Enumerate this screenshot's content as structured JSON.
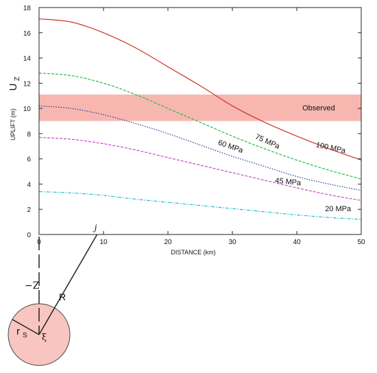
{
  "chart_data": {
    "type": "line",
    "xlabel": "DISTANCE (km)",
    "ylabel": "UPLIFT (m)",
    "ylabel_symbol": "U",
    "ylabel_subscript": "Z",
    "xlim": [
      0,
      50
    ],
    "ylim": [
      0,
      18
    ],
    "xticks": [
      0,
      10,
      20,
      30,
      40,
      50
    ],
    "yticks": [
      0,
      2,
      4,
      6,
      8,
      10,
      12,
      14,
      16,
      18
    ],
    "grid": false,
    "observed_band": {
      "label": "Observed",
      "ymin": 9.0,
      "ymax": 11.1,
      "color": "#f7b7b0"
    },
    "series": [
      {
        "name": "100 MPa",
        "color": "#cc3322",
        "dash": "solid",
        "x": [
          0,
          5,
          10,
          15,
          20,
          25,
          30,
          35,
          40,
          45,
          50
        ],
        "values": [
          17.1,
          16.85,
          16.0,
          14.8,
          13.3,
          11.8,
          10.2,
          8.9,
          7.8,
          6.8,
          5.9
        ]
      },
      {
        "name": "75 MPa",
        "color": "#22bb44",
        "dash": "dashed",
        "x": [
          0,
          5,
          10,
          15,
          20,
          25,
          30,
          35,
          40,
          45,
          50
        ],
        "values": [
          12.8,
          12.6,
          12.0,
          11.1,
          10.0,
          8.9,
          7.8,
          6.8,
          5.9,
          5.1,
          4.4
        ]
      },
      {
        "name": "60 MPa",
        "color": "#223388",
        "dash": "dotted",
        "x": [
          0,
          5,
          10,
          15,
          20,
          25,
          30,
          35,
          40,
          45,
          50
        ],
        "values": [
          10.2,
          10.0,
          9.5,
          8.8,
          8.0,
          7.1,
          6.2,
          5.4,
          4.6,
          4.0,
          3.5
        ]
      },
      {
        "name": "45 MPa",
        "color": "#cc44cc",
        "dash": "dashed",
        "x": [
          0,
          5,
          10,
          15,
          20,
          25,
          30,
          35,
          40,
          45,
          50
        ],
        "values": [
          7.7,
          7.55,
          7.2,
          6.7,
          6.1,
          5.5,
          4.9,
          4.3,
          3.7,
          3.15,
          2.7
        ]
      },
      {
        "name": "20 MPa",
        "color": "#22bbcc",
        "dash": "dashdot",
        "x": [
          0,
          5,
          10,
          15,
          20,
          25,
          30,
          35,
          40,
          45,
          50
        ],
        "values": [
          3.4,
          3.3,
          3.1,
          2.8,
          2.55,
          2.3,
          2.05,
          1.8,
          1.55,
          1.35,
          1.2
        ]
      }
    ]
  },
  "diagram": {
    "source_label": "ξ",
    "point_label": "j",
    "depth_label": "−Z",
    "distance_label": "R",
    "radius_label": "r",
    "radius_subscript": "S",
    "sphere_color": "#f8c5c0",
    "j_distance_km": 9
  }
}
